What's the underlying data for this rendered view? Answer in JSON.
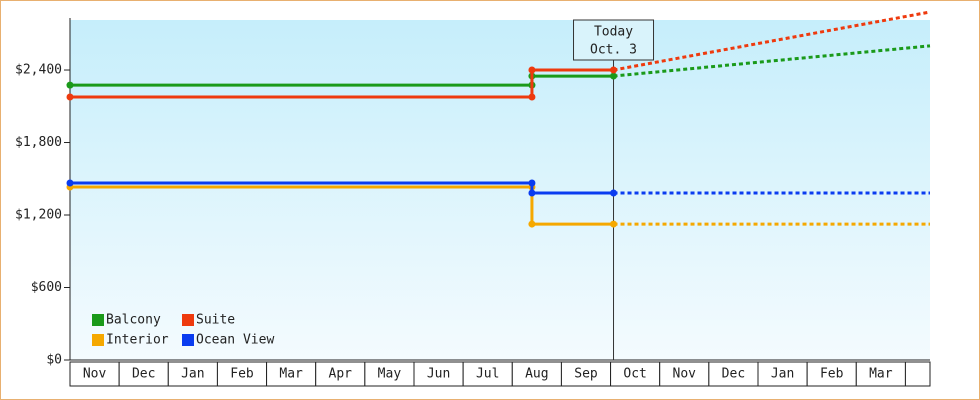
{
  "chart_data": {
    "type": "step-line",
    "categories": [
      "Nov",
      "Dec",
      "Jan",
      "Feb",
      "Mar",
      "Apr",
      "May",
      "Jun",
      "Jul",
      "Aug",
      "Sep",
      "Oct",
      "Nov",
      "Dec",
      "Jan",
      "Feb",
      "Mar",
      null
    ],
    "xlim": [
      0,
      17.5
    ],
    "ylim": [
      0,
      2814
    ],
    "yticks": [
      {
        "value": 0,
        "label": "$0"
      },
      {
        "value": 600,
        "label": "$600"
      },
      {
        "value": 1200,
        "label": "$1,200"
      },
      {
        "value": 1800,
        "label": "$1,800"
      },
      {
        "value": 2400,
        "label": "$2,400"
      }
    ],
    "annotation": {
      "x": 11.06,
      "lines": [
        "Today",
        "Oct. 3"
      ]
    },
    "legend": "lower left",
    "series": [
      {
        "name": "Balcony",
        "color": "#1a9a1a",
        "x": [
          0,
          9.4,
          9.4,
          11.06
        ],
        "values": [
          2275,
          2275,
          2350,
          2350
        ],
        "forecast": {
          "x": [
            11.06,
            17.5
          ],
          "values": [
            2350,
            2600
          ]
        }
      },
      {
        "name": "Suite",
        "color": "#ee3a0e",
        "x": [
          0,
          9.4,
          9.4,
          11.06
        ],
        "values": [
          2177,
          2177,
          2400,
          2400
        ],
        "forecast": {
          "x": [
            11.06,
            17.5
          ],
          "values": [
            2400,
            2880
          ]
        }
      },
      {
        "name": "Interior",
        "color": "#f5a800",
        "x": [
          0,
          9.4,
          9.4,
          11.06
        ],
        "values": [
          1432,
          1432,
          1125,
          1125
        ],
        "forecast": {
          "x": [
            11.06,
            17.5
          ],
          "values": [
            1125,
            1125
          ]
        }
      },
      {
        "name": "Ocean View",
        "color": "#0a3cf0",
        "x": [
          0,
          9.4,
          9.4,
          11.06
        ],
        "values": [
          1465,
          1465,
          1382,
          1382
        ],
        "forecast": {
          "x": [
            11.06,
            17.5
          ],
          "values": [
            1382,
            1382
          ]
        }
      }
    ]
  }
}
